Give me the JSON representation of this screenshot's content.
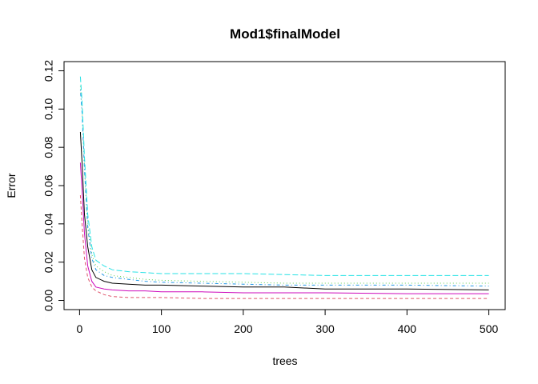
{
  "chart_data": {
    "type": "line",
    "title": "Mod1$finalModel",
    "xlabel": "trees",
    "ylabel": "Error",
    "xlim": [
      1,
      500
    ],
    "ylim": [
      0,
      0.12
    ],
    "xticks": [
      0,
      100,
      200,
      300,
      400,
      500
    ],
    "xtick_labels": [
      "0",
      "100",
      "200",
      "300",
      "400",
      "500"
    ],
    "yticks": [
      0.0,
      0.02,
      0.04,
      0.06,
      0.08,
      0.1,
      0.12
    ],
    "ytick_labels": [
      "0.00",
      "0.02",
      "0.04",
      "0.06",
      "0.08",
      "0.10",
      "0.12"
    ],
    "grid": false,
    "legend": "none",
    "series": [
      {
        "color": "#000000",
        "dash": "solid",
        "x": [
          1,
          3,
          6,
          10,
          15,
          20,
          30,
          40,
          60,
          80,
          100,
          150,
          200,
          250,
          300,
          400,
          500
        ],
        "y": [
          0.088,
          0.072,
          0.045,
          0.028,
          0.016,
          0.012,
          0.01,
          0.009,
          0.0085,
          0.008,
          0.008,
          0.0075,
          0.007,
          0.007,
          0.006,
          0.006,
          0.0055
        ]
      },
      {
        "color": "#DF536B",
        "dash": "dashed",
        "x": [
          1,
          3,
          6,
          10,
          15,
          20,
          30,
          40,
          60,
          80,
          100,
          150,
          200,
          250,
          300,
          400,
          500
        ],
        "y": [
          0.055,
          0.04,
          0.022,
          0.012,
          0.007,
          0.005,
          0.003,
          0.002,
          0.0015,
          0.0015,
          0.0015,
          0.001,
          0.001,
          0.001,
          0.001,
          0.001,
          0.001
        ]
      },
      {
        "color": "#61D04F",
        "dash": "dotted",
        "x": [
          1,
          3,
          6,
          10,
          15,
          20,
          30,
          40,
          60,
          80,
          100,
          150,
          200,
          250,
          300,
          400,
          500
        ],
        "y": [
          0.112,
          0.1,
          0.07,
          0.04,
          0.024,
          0.018,
          0.015,
          0.013,
          0.012,
          0.011,
          0.0105,
          0.01,
          0.0095,
          0.009,
          0.009,
          0.009,
          0.009
        ]
      },
      {
        "color": "#2297E6",
        "dash": "dotdash",
        "x": [
          1,
          3,
          6,
          10,
          15,
          20,
          30,
          40,
          60,
          80,
          100,
          150,
          200,
          250,
          300,
          400,
          500
        ],
        "y": [
          0.11,
          0.098,
          0.068,
          0.038,
          0.022,
          0.016,
          0.013,
          0.012,
          0.011,
          0.01,
          0.0095,
          0.009,
          0.0085,
          0.008,
          0.008,
          0.008,
          0.0075
        ]
      },
      {
        "color": "#28E2E5",
        "dash": "longdash",
        "x": [
          1,
          3,
          6,
          10,
          15,
          20,
          30,
          40,
          60,
          80,
          100,
          150,
          200,
          250,
          300,
          400,
          500
        ],
        "y": [
          0.117,
          0.104,
          0.075,
          0.045,
          0.028,
          0.021,
          0.018,
          0.016,
          0.015,
          0.0145,
          0.014,
          0.014,
          0.014,
          0.0135,
          0.013,
          0.013,
          0.013
        ]
      },
      {
        "color": "#CD0BBC",
        "dash": "solid",
        "x": [
          1,
          3,
          6,
          10,
          15,
          20,
          30,
          40,
          60,
          80,
          100,
          150,
          200,
          250,
          300,
          400,
          500
        ],
        "y": [
          0.072,
          0.058,
          0.035,
          0.018,
          0.01,
          0.007,
          0.006,
          0.0055,
          0.005,
          0.005,
          0.0045,
          0.0045,
          0.004,
          0.004,
          0.004,
          0.0035,
          0.0035
        ]
      }
    ]
  }
}
